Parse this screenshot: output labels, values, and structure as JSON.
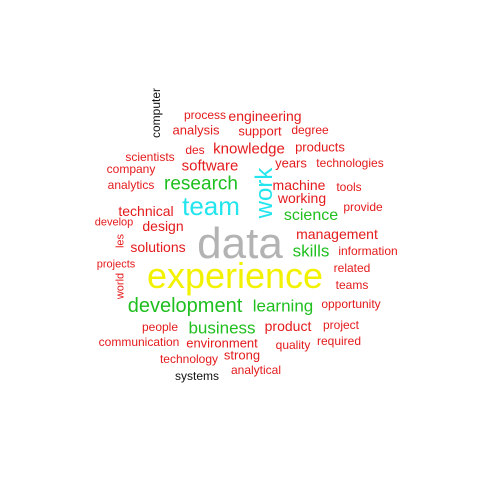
{
  "colors": {
    "red": "#e41a1c",
    "green": "#1fbf1f",
    "cyan": "#22e5ee",
    "yellow": "#f2f200",
    "gray": "#b3b3b3",
    "black": "#111111"
  },
  "words": [
    {
      "text": "data",
      "weight": 100,
      "color": "gray"
    },
    {
      "text": "experience",
      "weight": 85,
      "color": "yellow"
    },
    {
      "text": "team",
      "weight": 55,
      "color": "cyan"
    },
    {
      "text": "work",
      "weight": 55,
      "color": "cyan"
    },
    {
      "text": "development",
      "weight": 40,
      "color": "green"
    },
    {
      "text": "research",
      "weight": 38,
      "color": "green"
    },
    {
      "text": "business",
      "weight": 38,
      "color": "green"
    },
    {
      "text": "learning",
      "weight": 36,
      "color": "green"
    },
    {
      "text": "skills",
      "weight": 36,
      "color": "green"
    },
    {
      "text": "science",
      "weight": 34,
      "color": "green"
    },
    {
      "text": "software",
      "weight": 30,
      "color": "red"
    },
    {
      "text": "knowledge",
      "weight": 30,
      "color": "red"
    },
    {
      "text": "machine",
      "weight": 30,
      "color": "red"
    },
    {
      "text": "working",
      "weight": 30,
      "color": "red"
    },
    {
      "text": "technical",
      "weight": 30,
      "color": "red"
    },
    {
      "text": "design",
      "weight": 30,
      "color": "red"
    },
    {
      "text": "management",
      "weight": 30,
      "color": "red"
    },
    {
      "text": "solutions",
      "weight": 29,
      "color": "red"
    },
    {
      "text": "product",
      "weight": 29,
      "color": "red"
    },
    {
      "text": "engineering",
      "weight": 27,
      "color": "red"
    },
    {
      "text": "environment",
      "weight": 27,
      "color": "red"
    },
    {
      "text": "strong",
      "weight": 26,
      "color": "red"
    },
    {
      "text": "support",
      "weight": 26,
      "color": "red"
    },
    {
      "text": "analysis",
      "weight": 26,
      "color": "red"
    },
    {
      "text": "products",
      "weight": 26,
      "color": "red"
    },
    {
      "text": "years",
      "weight": 26,
      "color": "red"
    },
    {
      "text": "quality",
      "weight": 25,
      "color": "red"
    },
    {
      "text": "des",
      "weight": 25,
      "color": "red"
    },
    {
      "text": "process",
      "weight": 24,
      "color": "red"
    },
    {
      "text": "company",
      "weight": 24,
      "color": "red"
    },
    {
      "text": "scientists",
      "weight": 24,
      "color": "red"
    },
    {
      "text": "analytics",
      "weight": 24,
      "color": "red"
    },
    {
      "text": "technology",
      "weight": 24,
      "color": "red"
    },
    {
      "text": "people",
      "weight": 23,
      "color": "red"
    },
    {
      "text": "information",
      "weight": 23,
      "color": "red"
    },
    {
      "text": "opportunity",
      "weight": 23,
      "color": "red"
    },
    {
      "text": "related",
      "weight": 22,
      "color": "red"
    },
    {
      "text": "teams",
      "weight": 22,
      "color": "red"
    },
    {
      "text": "tools",
      "weight": 22,
      "color": "red"
    },
    {
      "text": "technologies",
      "weight": 22,
      "color": "red"
    },
    {
      "text": "degree",
      "weight": 21,
      "color": "red"
    },
    {
      "text": "provide",
      "weight": 21,
      "color": "red"
    },
    {
      "text": "project",
      "weight": 21,
      "color": "red"
    },
    {
      "text": "required",
      "weight": 21,
      "color": "red"
    },
    {
      "text": "analytical",
      "weight": 21,
      "color": "red"
    },
    {
      "text": "communication",
      "weight": 21,
      "color": "red"
    },
    {
      "text": "projects",
      "weight": 21,
      "color": "red"
    },
    {
      "text": "develop",
      "weight": 21,
      "color": "red"
    },
    {
      "text": "les",
      "weight": 20,
      "color": "red"
    },
    {
      "text": "world",
      "weight": 20,
      "color": "red"
    },
    {
      "text": "computer",
      "weight": 20,
      "color": "black"
    },
    {
      "text": "systems",
      "weight": 20,
      "color": "black"
    }
  ]
}
